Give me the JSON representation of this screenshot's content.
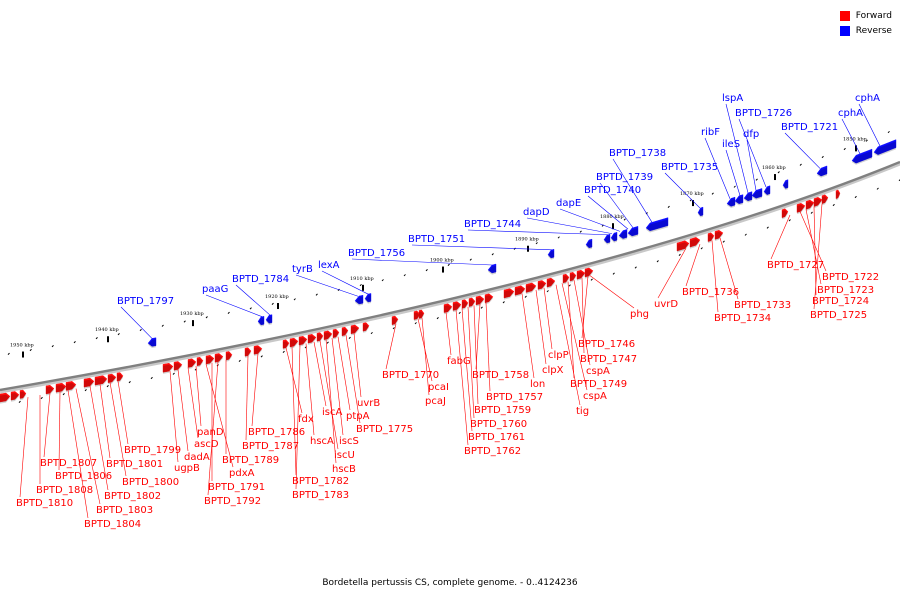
{
  "legend": {
    "forward_label": "Forward",
    "reverse_label": "Reverse",
    "forward_color": "#ff0000",
    "reverse_color": "#0000ff"
  },
  "caption": "Bordetella pertussis CS, complete genome. - 0..4124236",
  "colors": {
    "backbone": "#808080",
    "label_line_forward": "#ff0000",
    "label_line_reverse": "#0000ff"
  },
  "tick_labels": [
    "1950 kbp",
    "1940 kbp",
    "1930 kbp",
    "1920 kbp",
    "1910 kbp",
    "1900 kbp",
    "1890 kbp",
    "1880 kbp",
    "1870 kbp",
    "1860 kbp",
    "1850 kbp"
  ],
  "reverse_genes": [
    "BPTD_1797",
    "paaG",
    "BPTD_1784",
    "tyrB",
    "lexA",
    "BPTD_1756",
    "BPTD_1751",
    "BPTD_1744",
    "dapD",
    "dapE",
    "BPTD_1740",
    "BPTD_1739",
    "BPTD_1738",
    "BPTD_1735",
    "ribF",
    "ileS",
    "lspA",
    "dfp",
    "BPTD_1726",
    "BPTD_1721",
    "cphA",
    "cphA"
  ],
  "forward_genes": [
    "BPTD_1810",
    "BPTD_1808",
    "BPTD_1807",
    "BPTD_1806",
    "BPTD_1804",
    "BPTD_1803",
    "BPTD_1802",
    "BPTD_1801",
    "BPTD_1800",
    "BPTD_1799",
    "ugpB",
    "dadA",
    "ascD",
    "panD",
    "pdxA",
    "BPTD_1791",
    "BPTD_1792",
    "BPTD_1789",
    "BPTD_1787",
    "BPTD_1786",
    "fdx",
    "BPTD_1782",
    "BPTD_1783",
    "hscA",
    "iscA",
    "iscU",
    "hscB",
    "iscS",
    "ptpA",
    "BPTD_1775",
    "uvrB",
    "BPTD_1770",
    "pcaI",
    "pcaJ",
    "fabG",
    "BPTD_1762",
    "BPTD_1761",
    "BPTD_1760",
    "BPTD_1759",
    "BPTD_1758",
    "BPTD_1757",
    "lon",
    "clpX",
    "clpP",
    "tig",
    "cspA",
    "BPTD_1749",
    "cspA",
    "BPTD_1747",
    "BPTD_1746",
    "phg",
    "uvrD",
    "BPTD_1736",
    "BPTD_1734",
    "BPTD_1733",
    "BPTD_1727",
    "BPTD_1722",
    "BPTD_1723",
    "BPTD_1724",
    "BPTD_1725"
  ]
}
